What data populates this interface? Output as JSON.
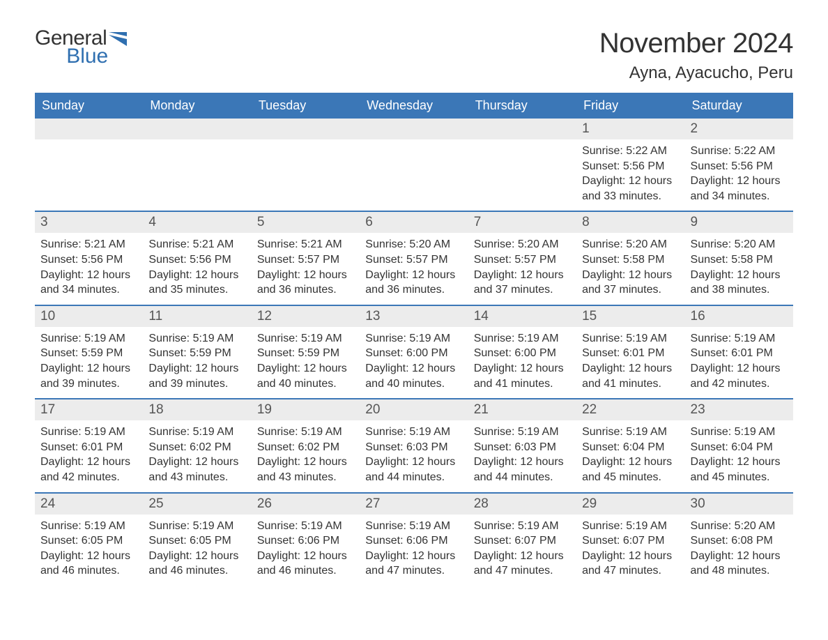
{
  "logo": {
    "word1": "General",
    "word2": "Blue"
  },
  "title": "November 2024",
  "location": "Ayna, Ayacucho, Peru",
  "colors": {
    "header_bg": "#3b77b7",
    "header_text": "#ffffff",
    "daynum_bg": "#ececec",
    "row_border": "#3b77b7",
    "text": "#333333",
    "logo_blue": "#2f6fb0"
  },
  "day_headers": [
    "Sunday",
    "Monday",
    "Tuesday",
    "Wednesday",
    "Thursday",
    "Friday",
    "Saturday"
  ],
  "weeks": [
    [
      {
        "empty": true
      },
      {
        "empty": true
      },
      {
        "empty": true
      },
      {
        "empty": true
      },
      {
        "empty": true
      },
      {
        "num": "1",
        "sunrise": "Sunrise: 5:22 AM",
        "sunset": "Sunset: 5:56 PM",
        "daylight1": "Daylight: 12 hours",
        "daylight2": "and 33 minutes."
      },
      {
        "num": "2",
        "sunrise": "Sunrise: 5:22 AM",
        "sunset": "Sunset: 5:56 PM",
        "daylight1": "Daylight: 12 hours",
        "daylight2": "and 34 minutes."
      }
    ],
    [
      {
        "num": "3",
        "sunrise": "Sunrise: 5:21 AM",
        "sunset": "Sunset: 5:56 PM",
        "daylight1": "Daylight: 12 hours",
        "daylight2": "and 34 minutes."
      },
      {
        "num": "4",
        "sunrise": "Sunrise: 5:21 AM",
        "sunset": "Sunset: 5:56 PM",
        "daylight1": "Daylight: 12 hours",
        "daylight2": "and 35 minutes."
      },
      {
        "num": "5",
        "sunrise": "Sunrise: 5:21 AM",
        "sunset": "Sunset: 5:57 PM",
        "daylight1": "Daylight: 12 hours",
        "daylight2": "and 36 minutes."
      },
      {
        "num": "6",
        "sunrise": "Sunrise: 5:20 AM",
        "sunset": "Sunset: 5:57 PM",
        "daylight1": "Daylight: 12 hours",
        "daylight2": "and 36 minutes."
      },
      {
        "num": "7",
        "sunrise": "Sunrise: 5:20 AM",
        "sunset": "Sunset: 5:57 PM",
        "daylight1": "Daylight: 12 hours",
        "daylight2": "and 37 minutes."
      },
      {
        "num": "8",
        "sunrise": "Sunrise: 5:20 AM",
        "sunset": "Sunset: 5:58 PM",
        "daylight1": "Daylight: 12 hours",
        "daylight2": "and 37 minutes."
      },
      {
        "num": "9",
        "sunrise": "Sunrise: 5:20 AM",
        "sunset": "Sunset: 5:58 PM",
        "daylight1": "Daylight: 12 hours",
        "daylight2": "and 38 minutes."
      }
    ],
    [
      {
        "num": "10",
        "sunrise": "Sunrise: 5:19 AM",
        "sunset": "Sunset: 5:59 PM",
        "daylight1": "Daylight: 12 hours",
        "daylight2": "and 39 minutes."
      },
      {
        "num": "11",
        "sunrise": "Sunrise: 5:19 AM",
        "sunset": "Sunset: 5:59 PM",
        "daylight1": "Daylight: 12 hours",
        "daylight2": "and 39 minutes."
      },
      {
        "num": "12",
        "sunrise": "Sunrise: 5:19 AM",
        "sunset": "Sunset: 5:59 PM",
        "daylight1": "Daylight: 12 hours",
        "daylight2": "and 40 minutes."
      },
      {
        "num": "13",
        "sunrise": "Sunrise: 5:19 AM",
        "sunset": "Sunset: 6:00 PM",
        "daylight1": "Daylight: 12 hours",
        "daylight2": "and 40 minutes."
      },
      {
        "num": "14",
        "sunrise": "Sunrise: 5:19 AM",
        "sunset": "Sunset: 6:00 PM",
        "daylight1": "Daylight: 12 hours",
        "daylight2": "and 41 minutes."
      },
      {
        "num": "15",
        "sunrise": "Sunrise: 5:19 AM",
        "sunset": "Sunset: 6:01 PM",
        "daylight1": "Daylight: 12 hours",
        "daylight2": "and 41 minutes."
      },
      {
        "num": "16",
        "sunrise": "Sunrise: 5:19 AM",
        "sunset": "Sunset: 6:01 PM",
        "daylight1": "Daylight: 12 hours",
        "daylight2": "and 42 minutes."
      }
    ],
    [
      {
        "num": "17",
        "sunrise": "Sunrise: 5:19 AM",
        "sunset": "Sunset: 6:01 PM",
        "daylight1": "Daylight: 12 hours",
        "daylight2": "and 42 minutes."
      },
      {
        "num": "18",
        "sunrise": "Sunrise: 5:19 AM",
        "sunset": "Sunset: 6:02 PM",
        "daylight1": "Daylight: 12 hours",
        "daylight2": "and 43 minutes."
      },
      {
        "num": "19",
        "sunrise": "Sunrise: 5:19 AM",
        "sunset": "Sunset: 6:02 PM",
        "daylight1": "Daylight: 12 hours",
        "daylight2": "and 43 minutes."
      },
      {
        "num": "20",
        "sunrise": "Sunrise: 5:19 AM",
        "sunset": "Sunset: 6:03 PM",
        "daylight1": "Daylight: 12 hours",
        "daylight2": "and 44 minutes."
      },
      {
        "num": "21",
        "sunrise": "Sunrise: 5:19 AM",
        "sunset": "Sunset: 6:03 PM",
        "daylight1": "Daylight: 12 hours",
        "daylight2": "and 44 minutes."
      },
      {
        "num": "22",
        "sunrise": "Sunrise: 5:19 AM",
        "sunset": "Sunset: 6:04 PM",
        "daylight1": "Daylight: 12 hours",
        "daylight2": "and 45 minutes."
      },
      {
        "num": "23",
        "sunrise": "Sunrise: 5:19 AM",
        "sunset": "Sunset: 6:04 PM",
        "daylight1": "Daylight: 12 hours",
        "daylight2": "and 45 minutes."
      }
    ],
    [
      {
        "num": "24",
        "sunrise": "Sunrise: 5:19 AM",
        "sunset": "Sunset: 6:05 PM",
        "daylight1": "Daylight: 12 hours",
        "daylight2": "and 46 minutes."
      },
      {
        "num": "25",
        "sunrise": "Sunrise: 5:19 AM",
        "sunset": "Sunset: 6:05 PM",
        "daylight1": "Daylight: 12 hours",
        "daylight2": "and 46 minutes."
      },
      {
        "num": "26",
        "sunrise": "Sunrise: 5:19 AM",
        "sunset": "Sunset: 6:06 PM",
        "daylight1": "Daylight: 12 hours",
        "daylight2": "and 46 minutes."
      },
      {
        "num": "27",
        "sunrise": "Sunrise: 5:19 AM",
        "sunset": "Sunset: 6:06 PM",
        "daylight1": "Daylight: 12 hours",
        "daylight2": "and 47 minutes."
      },
      {
        "num": "28",
        "sunrise": "Sunrise: 5:19 AM",
        "sunset": "Sunset: 6:07 PM",
        "daylight1": "Daylight: 12 hours",
        "daylight2": "and 47 minutes."
      },
      {
        "num": "29",
        "sunrise": "Sunrise: 5:19 AM",
        "sunset": "Sunset: 6:07 PM",
        "daylight1": "Daylight: 12 hours",
        "daylight2": "and 47 minutes."
      },
      {
        "num": "30",
        "sunrise": "Sunrise: 5:20 AM",
        "sunset": "Sunset: 6:08 PM",
        "daylight1": "Daylight: 12 hours",
        "daylight2": "and 48 minutes."
      }
    ]
  ]
}
